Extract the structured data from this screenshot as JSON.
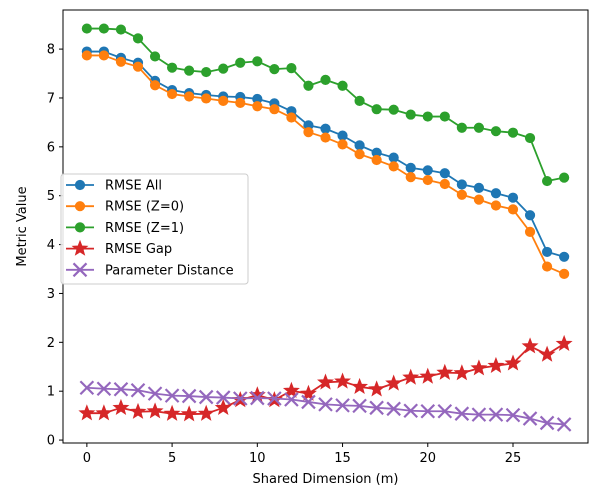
{
  "chart_data": {
    "type": "line",
    "title": "",
    "xlabel": "Shared Dimension (m)",
    "ylabel": "Metric Value",
    "xlim": [
      -1.4,
      29.4
    ],
    "ylim": [
      -0.06,
      8.8
    ],
    "xticks": [
      0,
      5,
      10,
      15,
      20,
      25
    ],
    "yticks": [
      0,
      1,
      2,
      3,
      4,
      5,
      6,
      7,
      8
    ],
    "grid": false,
    "legend_position": "center-left",
    "x": [
      0,
      1,
      2,
      3,
      4,
      5,
      6,
      7,
      8,
      9,
      10,
      11,
      12,
      13,
      14,
      15,
      16,
      17,
      18,
      19,
      20,
      21,
      22,
      23,
      24,
      25,
      26,
      27,
      28
    ],
    "series": [
      {
        "name": "RMSE All",
        "color": "#1f77b4",
        "marker": "circle",
        "values": [
          7.95,
          7.95,
          7.82,
          7.72,
          7.35,
          7.16,
          7.1,
          7.06,
          7.03,
          7.02,
          6.98,
          6.89,
          6.73,
          6.44,
          6.37,
          6.23,
          6.03,
          5.88,
          5.78,
          5.57,
          5.52,
          5.46,
          5.23,
          5.16,
          5.05,
          4.96,
          4.6,
          3.85,
          3.75
        ]
      },
      {
        "name": "RMSE (Z=0)",
        "color": "#ff7f0e",
        "marker": "circle",
        "values": [
          7.87,
          7.87,
          7.74,
          7.64,
          7.26,
          7.08,
          7.03,
          6.99,
          6.94,
          6.9,
          6.83,
          6.77,
          6.6,
          6.3,
          6.19,
          6.05,
          5.85,
          5.73,
          5.6,
          5.38,
          5.32,
          5.24,
          5.02,
          4.92,
          4.8,
          4.72,
          4.26,
          3.55,
          3.4
        ]
      },
      {
        "name": "RMSE (Z=1)",
        "color": "#2ca02c",
        "marker": "circle",
        "values": [
          8.42,
          8.42,
          8.4,
          8.22,
          7.85,
          7.62,
          7.56,
          7.53,
          7.6,
          7.72,
          7.75,
          7.59,
          7.61,
          7.25,
          7.37,
          7.25,
          6.94,
          6.77,
          6.76,
          6.66,
          6.62,
          6.62,
          6.39,
          6.39,
          6.32,
          6.29,
          6.18,
          5.3,
          5.37
        ]
      },
      {
        "name": "RMSE Gap",
        "color": "#d62728",
        "marker": "star",
        "values": [
          0.55,
          0.55,
          0.66,
          0.58,
          0.59,
          0.54,
          0.53,
          0.54,
          0.66,
          0.82,
          0.92,
          0.82,
          1.01,
          0.95,
          1.18,
          1.2,
          1.09,
          1.04,
          1.16,
          1.28,
          1.3,
          1.38,
          1.37,
          1.47,
          1.52,
          1.57,
          1.92,
          1.75,
          1.97
        ]
      },
      {
        "name": "Parameter Distance",
        "color": "#9467bd",
        "marker": "x",
        "values": [
          1.07,
          1.05,
          1.04,
          1.02,
          0.95,
          0.91,
          0.9,
          0.88,
          0.87,
          0.85,
          0.86,
          0.85,
          0.83,
          0.78,
          0.73,
          0.71,
          0.7,
          0.66,
          0.64,
          0.6,
          0.59,
          0.59,
          0.54,
          0.52,
          0.52,
          0.51,
          0.44,
          0.35,
          0.32
        ]
      }
    ]
  }
}
